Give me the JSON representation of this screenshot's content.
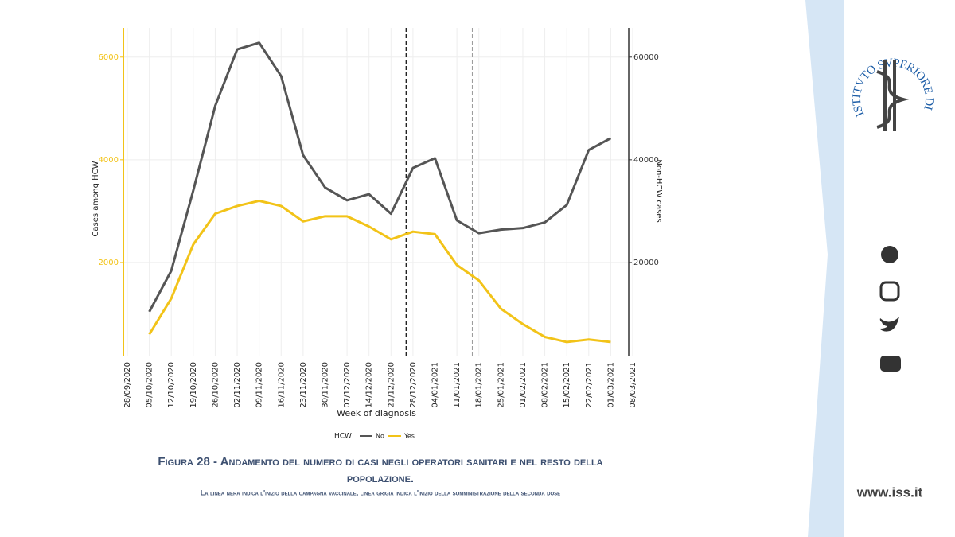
{
  "chart_data": {
    "type": "line",
    "y_label": "Cases among HCW",
    "y2_label": "Non-HCW cases",
    "x_label": "Week of diagnosis",
    "legend_title": "HCW",
    "categories": [
      "28/09/2020",
      "05/10/2020",
      "12/10/2020",
      "19/10/2020",
      "26/10/2020",
      "02/11/2020",
      "09/11/2020",
      "16/11/2020",
      "23/11/2020",
      "30/11/2020",
      "07/12/2020",
      "14/12/2020",
      "21/12/2020",
      "28/12/2020",
      "04/01/2021",
      "11/01/2021",
      "18/01/2021",
      "25/01/2021",
      "01/02/2021",
      "08/02/2021",
      "15/02/2021",
      "22/02/2021",
      "01/03/2021",
      "08/03/2021"
    ],
    "series": [
      {
        "name": "No",
        "color": "#555555",
        "axis": "y2",
        "values": [
          null,
          10400,
          18400,
          34000,
          50500,
          61500,
          62800,
          56300,
          40900,
          34600,
          32100,
          33300,
          29500,
          38400,
          40300,
          28200,
          25700,
          26400,
          26700,
          27800,
          31200,
          41900,
          44200,
          null
        ]
      },
      {
        "name": "Yes",
        "color": "#f2c318",
        "values": [
          null,
          600,
          1300,
          2350,
          2950,
          3100,
          3200,
          3100,
          2800,
          2900,
          2900,
          2700,
          2450,
          2600,
          2550,
          1950,
          1650,
          1100,
          800,
          550,
          450,
          500,
          450,
          null
        ]
      }
    ],
    "vlines": [
      {
        "at": 12.7,
        "color": "#222222"
      },
      {
        "at": 15.7,
        "color": "#999999"
      }
    ],
    "ylim": [
      170,
      6570
    ],
    "yticks": [
      2000,
      4000,
      6000
    ],
    "y2lim": [
      1700,
      65700
    ],
    "y2ticks": [
      20000,
      40000,
      60000
    ],
    "grid": true,
    "y_axis_color": "#f2c318",
    "y2_axis_color": "#333333"
  },
  "caption": {
    "title": "Figura 28 - Andamento del numero di casi negli operatori sanitari e nel resto della",
    "title_line2": "popolazione.",
    "note": "La linea nera indica l'inizio della campagna vaccinale, linea grigia indica l'inizio della somministrazione della seconda dose"
  },
  "logo": {
    "text": "ISTITVTO SVPERIORE DI SANITÀ"
  },
  "website": "www.iss.it"
}
